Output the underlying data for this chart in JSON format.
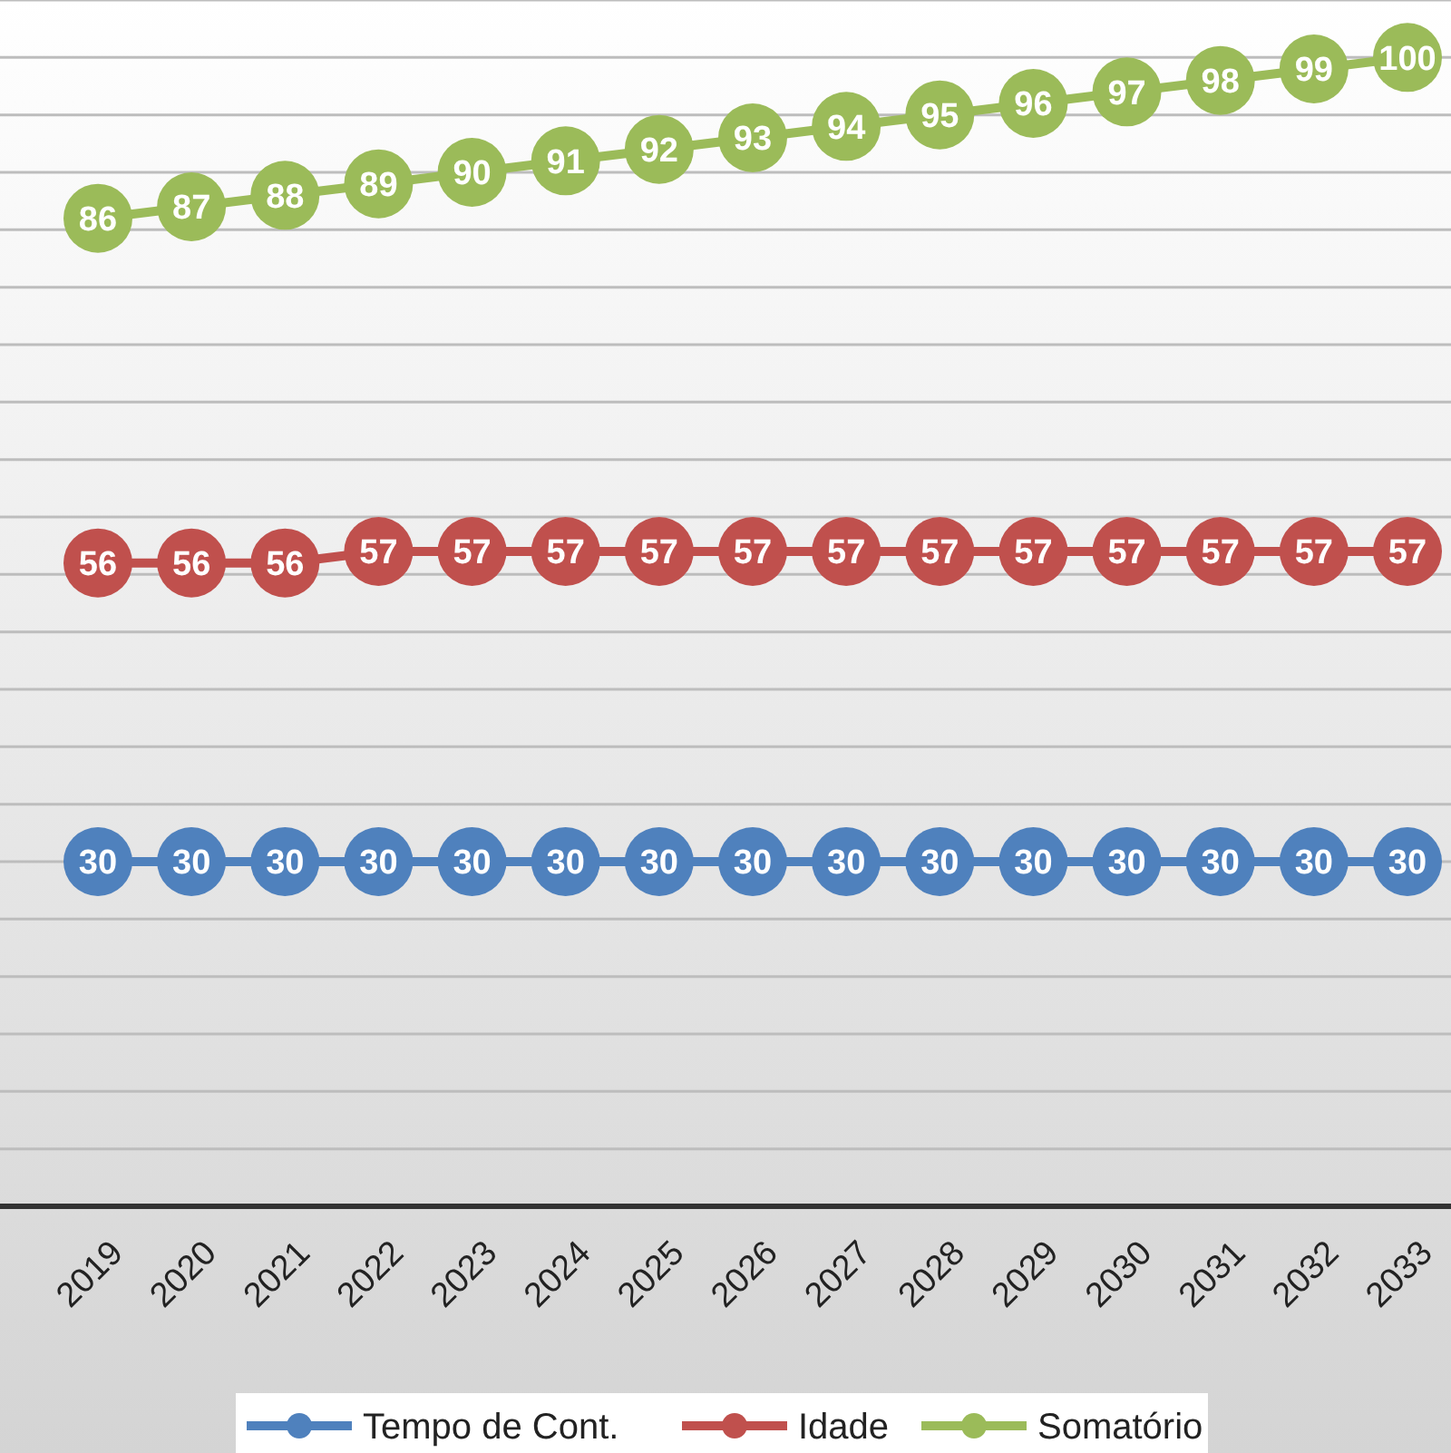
{
  "chart_data": {
    "type": "line",
    "categories": [
      "2019",
      "2020",
      "2021",
      "2022",
      "2023",
      "2024",
      "2025",
      "2026",
      "2027",
      "2028",
      "2029",
      "2030",
      "2031",
      "2032",
      "2033"
    ],
    "series": [
      {
        "name": "Tempo de Cont.",
        "color": "#4f81bd",
        "values": [
          30,
          30,
          30,
          30,
          30,
          30,
          30,
          30,
          30,
          30,
          30,
          30,
          30,
          30,
          30
        ]
      },
      {
        "name": "Idade",
        "color": "#c0504d",
        "values": [
          56,
          56,
          56,
          57,
          57,
          57,
          57,
          57,
          57,
          57,
          57,
          57,
          57,
          57,
          57
        ]
      },
      {
        "name": "Somatório",
        "color": "#9bbb59",
        "values": [
          86,
          87,
          88,
          89,
          90,
          91,
          92,
          93,
          94,
          95,
          96,
          97,
          98,
          99,
          100
        ]
      }
    ],
    "ylim": [
      0,
      105
    ],
    "yticks": [
      {
        "value": 0,
        "label": null
      },
      {
        "value": 5,
        "label": null
      },
      {
        "value": 10,
        "label": null
      },
      {
        "value": 15,
        "label": null
      },
      {
        "value": 20,
        "label": null
      },
      {
        "value": 25,
        "label": null
      },
      {
        "value": 30,
        "label": null
      },
      {
        "value": 35,
        "label": null
      },
      {
        "value": 40,
        "label": null
      },
      {
        "value": 45,
        "label": null
      },
      {
        "value": 50,
        "label": null
      },
      {
        "value": 55,
        "label": null
      },
      {
        "value": 60,
        "label": null
      },
      {
        "value": 65,
        "label": null
      },
      {
        "value": 70,
        "label": null
      },
      {
        "value": 75,
        "label": null
      },
      {
        "value": 80,
        "label": null
      },
      {
        "value": 85,
        "label": null
      },
      {
        "value": 90,
        "label": null
      },
      {
        "value": 95,
        "label": null
      },
      {
        "value": 100,
        "label": null
      },
      {
        "value": 105,
        "label": null
      }
    ],
    "tick_labels": "x",
    "grid": "y",
    "legend": "bottom",
    "data_labels": true,
    "marker": "circle",
    "line_style": "solid"
  }
}
